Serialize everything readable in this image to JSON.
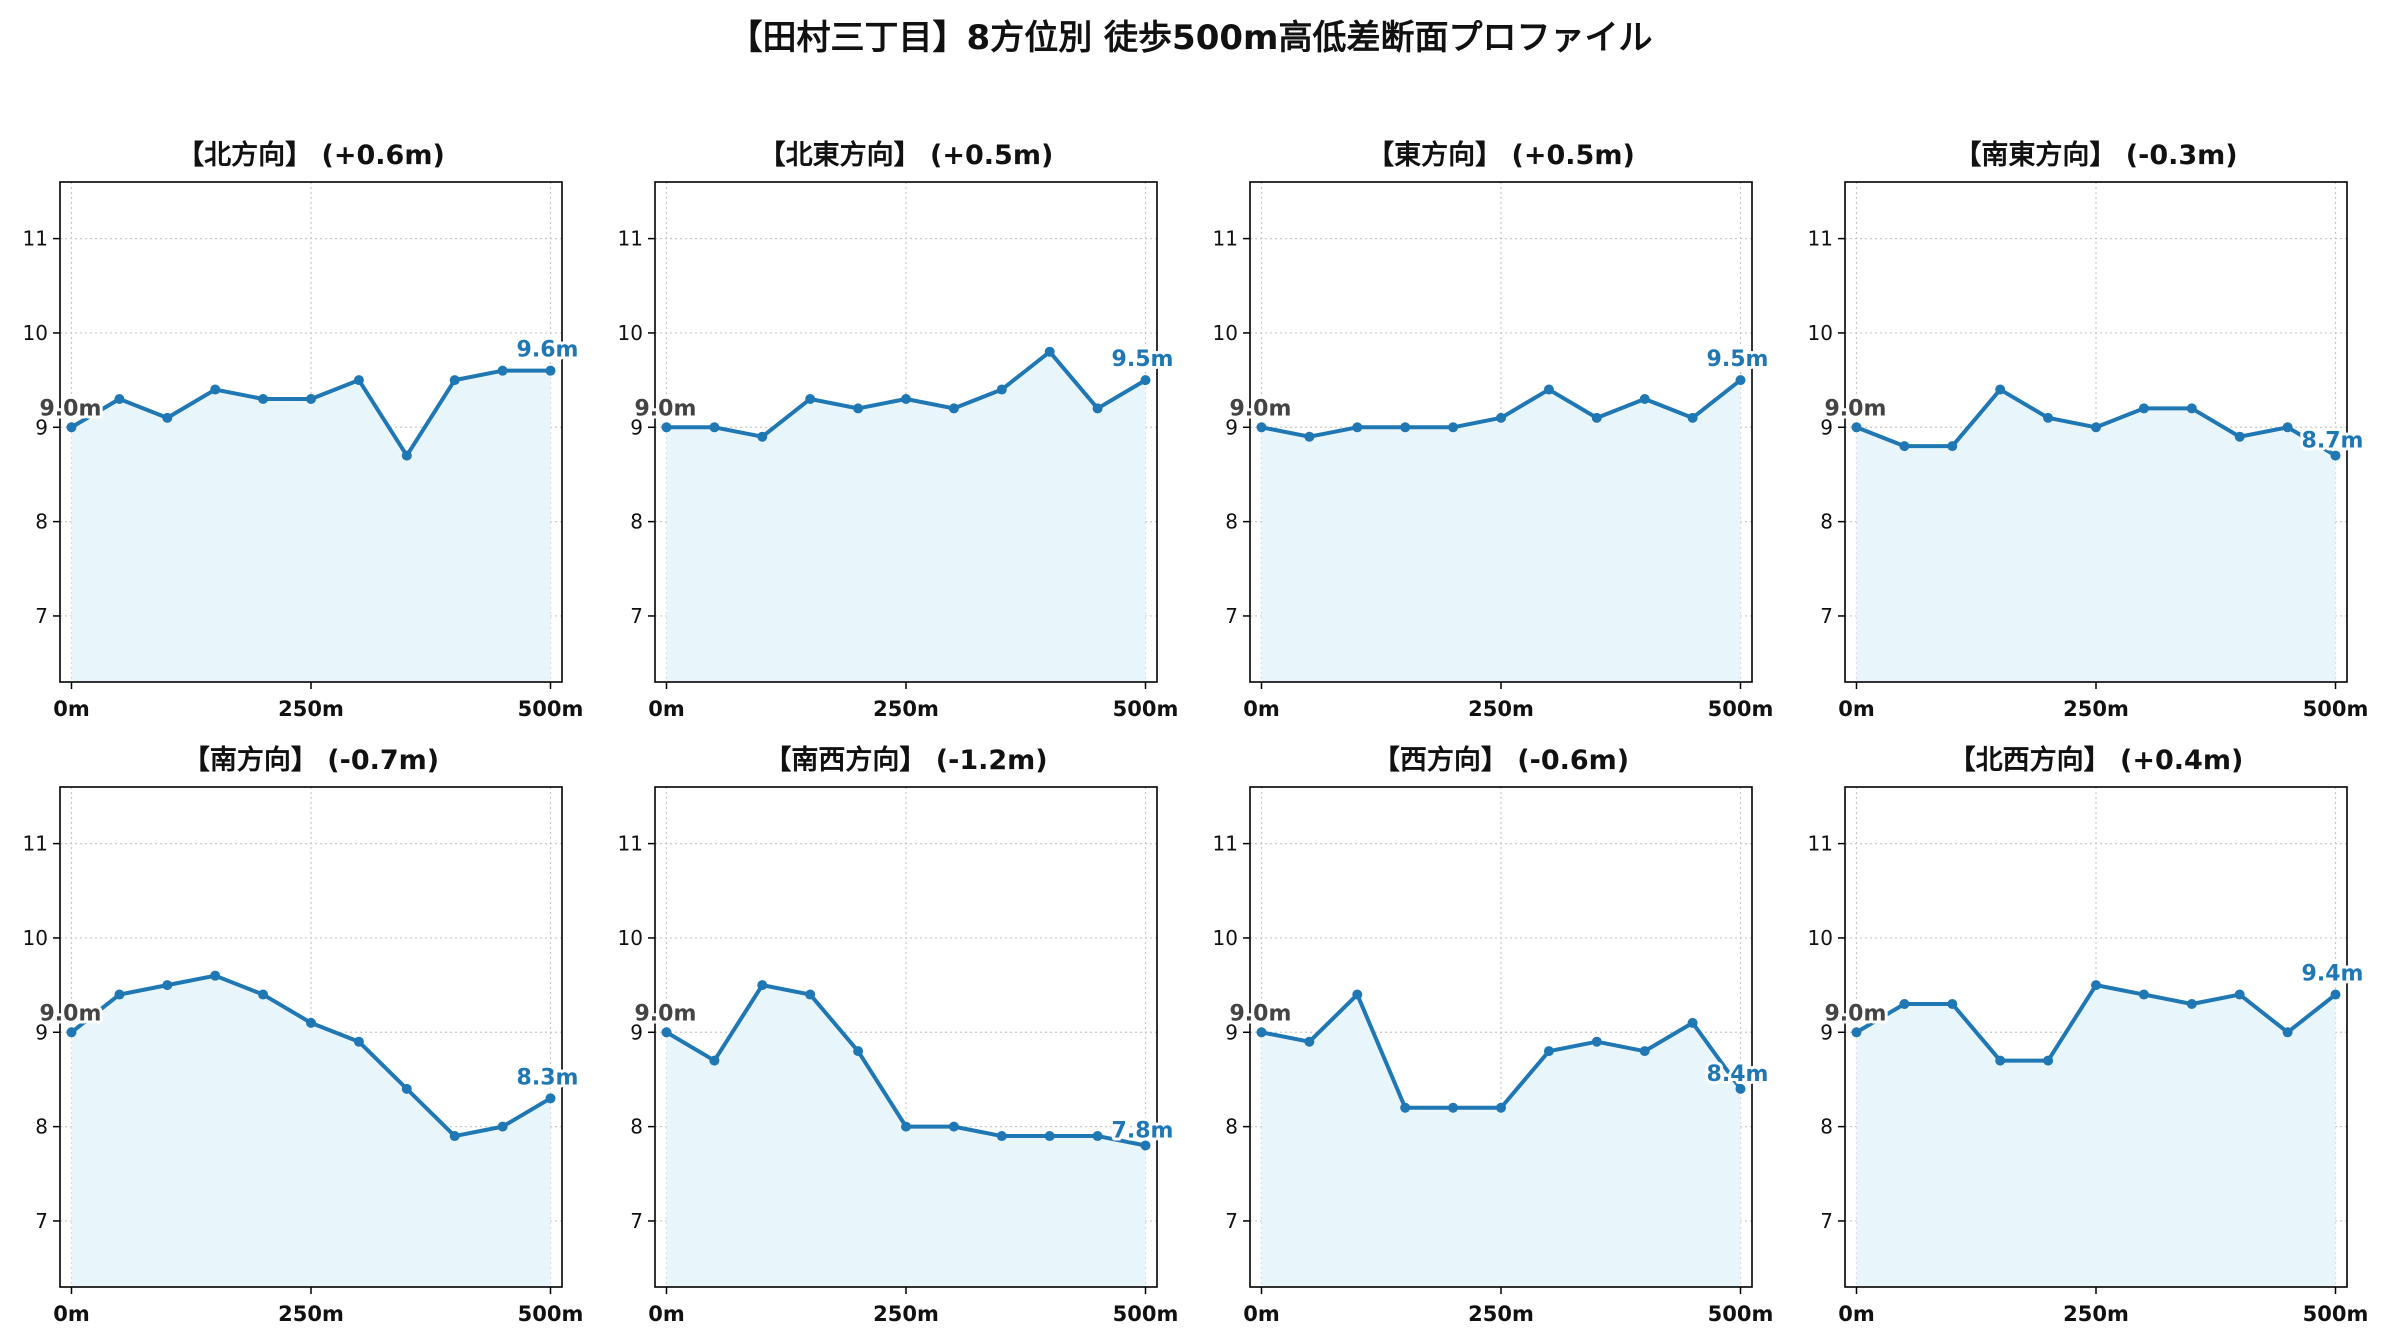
{
  "suptitle": "【田村三丁目】8方位別 徒歩500m高低差断面プロファイル",
  "colors": {
    "line": "#1f77b4",
    "fill": "#e8f6fb",
    "grid": "#c8c8c8",
    "start_label": "#444444"
  },
  "chart_data": [
    {
      "type": "area",
      "title": "【北方向】 (+0.6m)",
      "x": [
        0,
        50,
        100,
        150,
        200,
        250,
        300,
        350,
        400,
        450,
        500
      ],
      "values": [
        9.0,
        9.3,
        9.1,
        9.4,
        9.3,
        9.3,
        9.5,
        8.7,
        9.5,
        9.6,
        9.6
      ],
      "start_label": "9.0m",
      "end_label": "9.6m",
      "xticks": [
        "0m",
        "250m",
        "500m"
      ],
      "xtick_values": [
        0,
        250,
        500
      ],
      "yticks": [
        7,
        8,
        9,
        10,
        11
      ],
      "ylim": [
        6.3,
        11.6
      ],
      "xlim": [
        -12,
        512
      ],
      "grid": true
    },
    {
      "type": "area",
      "title": "【北東方向】 (+0.5m)",
      "x": [
        0,
        50,
        100,
        150,
        200,
        250,
        300,
        350,
        400,
        450,
        500
      ],
      "values": [
        9.0,
        9.0,
        8.9,
        9.3,
        9.2,
        9.3,
        9.2,
        9.4,
        9.8,
        9.2,
        9.5
      ],
      "start_label": "9.0m",
      "end_label": "9.5m",
      "xticks": [
        "0m",
        "250m",
        "500m"
      ],
      "xtick_values": [
        0,
        250,
        500
      ],
      "yticks": [
        7,
        8,
        9,
        10,
        11
      ],
      "ylim": [
        6.3,
        11.6
      ],
      "xlim": [
        -12,
        512
      ],
      "grid": true
    },
    {
      "type": "area",
      "title": "【東方向】 (+0.5m)",
      "x": [
        0,
        50,
        100,
        150,
        200,
        250,
        300,
        350,
        400,
        450,
        500
      ],
      "values": [
        9.0,
        8.9,
        9.0,
        9.0,
        9.0,
        9.1,
        9.4,
        9.1,
        9.3,
        9.1,
        9.5
      ],
      "start_label": "9.0m",
      "end_label": "9.5m",
      "xticks": [
        "0m",
        "250m",
        "500m"
      ],
      "xtick_values": [
        0,
        250,
        500
      ],
      "yticks": [
        7,
        8,
        9,
        10,
        11
      ],
      "ylim": [
        6.3,
        11.6
      ],
      "xlim": [
        -12,
        512
      ],
      "grid": true
    },
    {
      "type": "area",
      "title": "【南東方向】 (-0.3m)",
      "x": [
        0,
        50,
        100,
        150,
        200,
        250,
        300,
        350,
        400,
        450,
        500
      ],
      "values": [
        9.0,
        8.8,
        8.8,
        9.4,
        9.1,
        9.0,
        9.2,
        9.2,
        8.9,
        9.0,
        8.7
      ],
      "start_label": "9.0m",
      "end_label": "8.7m",
      "xticks": [
        "0m",
        "250m",
        "500m"
      ],
      "xtick_values": [
        0,
        250,
        500
      ],
      "yticks": [
        7,
        8,
        9,
        10,
        11
      ],
      "ylim": [
        6.3,
        11.6
      ],
      "xlim": [
        -12,
        512
      ],
      "grid": true
    },
    {
      "type": "area",
      "title": "【南方向】 (-0.7m)",
      "x": [
        0,
        50,
        100,
        150,
        200,
        250,
        300,
        350,
        400,
        450,
        500
      ],
      "values": [
        9.0,
        9.4,
        9.5,
        9.6,
        9.4,
        9.1,
        8.9,
        8.4,
        7.9,
        8.0,
        8.3
      ],
      "start_label": "9.0m",
      "end_label": "8.3m",
      "xticks": [
        "0m",
        "250m",
        "500m"
      ],
      "xtick_values": [
        0,
        250,
        500
      ],
      "yticks": [
        7,
        8,
        9,
        10,
        11
      ],
      "ylim": [
        6.3,
        11.6
      ],
      "xlim": [
        -12,
        512
      ],
      "grid": true
    },
    {
      "type": "area",
      "title": "【南西方向】 (-1.2m)",
      "x": [
        0,
        50,
        100,
        150,
        200,
        250,
        300,
        350,
        400,
        450,
        500
      ],
      "values": [
        9.0,
        8.7,
        9.5,
        9.4,
        8.8,
        8.0,
        8.0,
        7.9,
        7.9,
        7.9,
        7.8
      ],
      "start_label": "9.0m",
      "end_label": "7.8m",
      "xticks": [
        "0m",
        "250m",
        "500m"
      ],
      "xtick_values": [
        0,
        250,
        500
      ],
      "yticks": [
        7,
        8,
        9,
        10,
        11
      ],
      "ylim": [
        6.3,
        11.6
      ],
      "xlim": [
        -12,
        512
      ],
      "grid": true
    },
    {
      "type": "area",
      "title": "【西方向】 (-0.6m)",
      "x": [
        0,
        50,
        100,
        150,
        200,
        250,
        300,
        350,
        400,
        450,
        500
      ],
      "values": [
        9.0,
        8.9,
        9.4,
        8.2,
        8.2,
        8.2,
        8.8,
        8.9,
        8.8,
        9.1,
        8.4
      ],
      "start_label": "9.0m",
      "end_label": "8.4m",
      "xticks": [
        "0m",
        "250m",
        "500m"
      ],
      "xtick_values": [
        0,
        250,
        500
      ],
      "yticks": [
        7,
        8,
        9,
        10,
        11
      ],
      "ylim": [
        6.3,
        11.6
      ],
      "xlim": [
        -12,
        512
      ],
      "grid": true
    },
    {
      "type": "area",
      "title": "【北西方向】 (+0.4m)",
      "x": [
        0,
        50,
        100,
        150,
        200,
        250,
        300,
        350,
        400,
        450,
        500
      ],
      "values": [
        9.0,
        9.3,
        9.3,
        8.7,
        8.7,
        9.5,
        9.4,
        9.3,
        9.4,
        9.0,
        9.4
      ],
      "start_label": "9.0m",
      "end_label": "9.4m",
      "xticks": [
        "0m",
        "250m",
        "500m"
      ],
      "xtick_values": [
        0,
        250,
        500
      ],
      "yticks": [
        7,
        8,
        9,
        10,
        11
      ],
      "ylim": [
        6.3,
        11.6
      ],
      "xlim": [
        -12,
        512
      ],
      "grid": true
    }
  ]
}
